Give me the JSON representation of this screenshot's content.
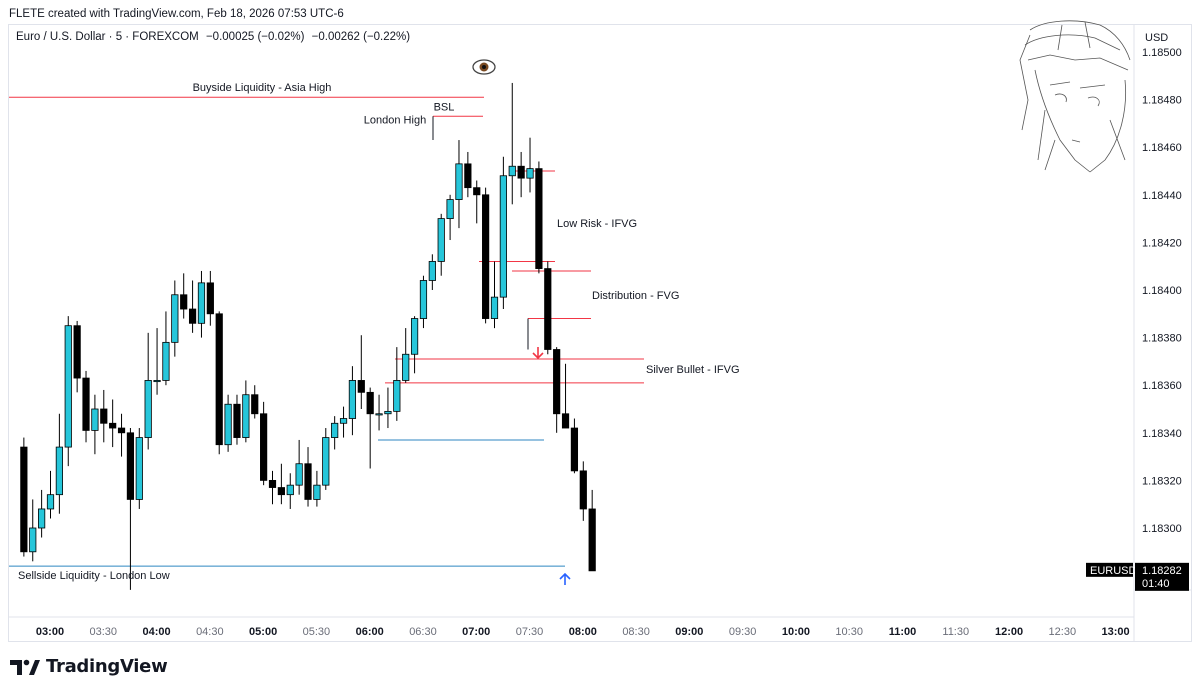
{
  "header": {
    "credit": "FLETE created with TradingView.com, Feb 18, 2026 07:53 UTC-6"
  },
  "legend": {
    "symbol": "Euro / U.S. Dollar · 5 · FOREXCOM",
    "change": "−0.00025 (−0.02%)",
    "change2": "−0.00262 (−0.22%)"
  },
  "price_axis": {
    "currency": "USD",
    "ticker": "EURUSD",
    "last_price": "1.18282",
    "countdown": "01:40"
  },
  "footer": {
    "brand": "TradingView"
  },
  "colors": {
    "up": "#26c6da",
    "down": "#000000",
    "liquidity_red": "#f23645",
    "liquidity_blue": "#2e86c1",
    "arrow_blue": "#2962ff",
    "arrow_red": "#f23645"
  },
  "icons": [
    "eye-icon",
    "tradingview-logo-icon",
    "anime-sketch-watermark"
  ],
  "chart_data": {
    "type": "candlestick",
    "timeframe": "5",
    "x_ticks": [
      "03:00",
      "03:30",
      "04:00",
      "04:30",
      "05:00",
      "05:30",
      "06:00",
      "06:30",
      "07:00",
      "07:30",
      "08:00",
      "08:30",
      "09:00",
      "09:30",
      "10:00",
      "10:30",
      "11:00",
      "11:30",
      "12:00",
      "12:30",
      "13:00"
    ],
    "x_ticks_bold": [
      "03:00",
      "04:00",
      "05:00",
      "06:00",
      "07:00",
      "08:00",
      "09:00",
      "10:00",
      "11:00",
      "12:00",
      "13:00"
    ],
    "y_ticks": [
      "1.18500",
      "1.18480",
      "1.18460",
      "1.18440",
      "1.18420",
      "1.18400",
      "1.18380",
      "1.18360",
      "1.18340",
      "1.18320",
      "1.18300"
    ],
    "ylim": [
      1.18264,
      1.18508
    ],
    "start_time": "02:45",
    "candles": [
      {
        "o": 1.18334,
        "h": 1.18338,
        "l": 1.18288,
        "c": 1.1829
      },
      {
        "o": 1.1829,
        "h": 1.18312,
        "l": 1.18286,
        "c": 1.183
      },
      {
        "o": 1.183,
        "h": 1.18316,
        "l": 1.18296,
        "c": 1.18308
      },
      {
        "o": 1.18308,
        "h": 1.18324,
        "l": 1.18304,
        "c": 1.18314
      },
      {
        "o": 1.18314,
        "h": 1.18348,
        "l": 1.18306,
        "c": 1.18334
      },
      {
        "o": 1.18334,
        "h": 1.18389,
        "l": 1.18326,
        "c": 1.18385
      },
      {
        "o": 1.18385,
        "h": 1.18387,
        "l": 1.18357,
        "c": 1.18363
      },
      {
        "o": 1.18363,
        "h": 1.18366,
        "l": 1.18336,
        "c": 1.18341
      },
      {
        "o": 1.18341,
        "h": 1.18356,
        "l": 1.18331,
        "c": 1.1835
      },
      {
        "o": 1.1835,
        "h": 1.18358,
        "l": 1.18336,
        "c": 1.18344
      },
      {
        "o": 1.18344,
        "h": 1.18354,
        "l": 1.18334,
        "c": 1.18342
      },
      {
        "o": 1.18342,
        "h": 1.18348,
        "l": 1.1833,
        "c": 1.1834
      },
      {
        "o": 1.1834,
        "h": 1.18342,
        "l": 1.18274,
        "c": 1.18312
      },
      {
        "o": 1.18312,
        "h": 1.18342,
        "l": 1.18308,
        "c": 1.18338
      },
      {
        "o": 1.18338,
        "h": 1.18382,
        "l": 1.18333,
        "c": 1.18362
      },
      {
        "o": 1.18362,
        "h": 1.18384,
        "l": 1.18356,
        "c": 1.18362
      },
      {
        "o": 1.18362,
        "h": 1.18391,
        "l": 1.1836,
        "c": 1.18378
      },
      {
        "o": 1.18378,
        "h": 1.18404,
        "l": 1.18372,
        "c": 1.18398
      },
      {
        "o": 1.18398,
        "h": 1.18407,
        "l": 1.18388,
        "c": 1.18392
      },
      {
        "o": 1.18392,
        "h": 1.18404,
        "l": 1.18382,
        "c": 1.18386
      },
      {
        "o": 1.18386,
        "h": 1.18408,
        "l": 1.1838,
        "c": 1.18403
      },
      {
        "o": 1.18403,
        "h": 1.18408,
        "l": 1.18385,
        "c": 1.1839
      },
      {
        "o": 1.1839,
        "h": 1.18391,
        "l": 1.18331,
        "c": 1.18335
      },
      {
        "o": 1.18335,
        "h": 1.18356,
        "l": 1.18332,
        "c": 1.18352
      },
      {
        "o": 1.18352,
        "h": 1.18356,
        "l": 1.18335,
        "c": 1.18338
      },
      {
        "o": 1.18338,
        "h": 1.18362,
        "l": 1.18336,
        "c": 1.18356
      },
      {
        "o": 1.18356,
        "h": 1.1836,
        "l": 1.18346,
        "c": 1.18348
      },
      {
        "o": 1.18348,
        "h": 1.18353,
        "l": 1.18318,
        "c": 1.1832
      },
      {
        "o": 1.1832,
        "h": 1.18324,
        "l": 1.1831,
        "c": 1.18317
      },
      {
        "o": 1.18317,
        "h": 1.18327,
        "l": 1.1831,
        "c": 1.18314
      },
      {
        "o": 1.18314,
        "h": 1.18323,
        "l": 1.18308,
        "c": 1.18318
      },
      {
        "o": 1.18318,
        "h": 1.18337,
        "l": 1.18314,
        "c": 1.18327
      },
      {
        "o": 1.18327,
        "h": 1.18334,
        "l": 1.18309,
        "c": 1.18312
      },
      {
        "o": 1.18312,
        "h": 1.18324,
        "l": 1.18309,
        "c": 1.18318
      },
      {
        "o": 1.18318,
        "h": 1.18342,
        "l": 1.18316,
        "c": 1.18338
      },
      {
        "o": 1.18338,
        "h": 1.18347,
        "l": 1.18333,
        "c": 1.18344
      },
      {
        "o": 1.18344,
        "h": 1.18351,
        "l": 1.18338,
        "c": 1.18346
      },
      {
        "o": 1.18346,
        "h": 1.18368,
        "l": 1.18339,
        "c": 1.18362
      },
      {
        "o": 1.18362,
        "h": 1.18381,
        "l": 1.1835,
        "c": 1.18357
      },
      {
        "o": 1.18357,
        "h": 1.18359,
        "l": 1.18325,
        "c": 1.18348
      },
      {
        "o": 1.18348,
        "h": 1.18356,
        "l": 1.18341,
        "c": 1.18348
      },
      {
        "o": 1.18348,
        "h": 1.18359,
        "l": 1.18342,
        "c": 1.18349
      },
      {
        "o": 1.18349,
        "h": 1.18376,
        "l": 1.18345,
        "c": 1.18362
      },
      {
        "o": 1.18362,
        "h": 1.18384,
        "l": 1.18361,
        "c": 1.18373
      },
      {
        "o": 1.18373,
        "h": 1.18389,
        "l": 1.18365,
        "c": 1.18388
      },
      {
        "o": 1.18388,
        "h": 1.18406,
        "l": 1.18384,
        "c": 1.18404
      },
      {
        "o": 1.18404,
        "h": 1.18415,
        "l": 1.184,
        "c": 1.18412
      },
      {
        "o": 1.18412,
        "h": 1.18432,
        "l": 1.18406,
        "c": 1.1843
      },
      {
        "o": 1.1843,
        "h": 1.1844,
        "l": 1.18421,
        "c": 1.18438
      },
      {
        "o": 1.18438,
        "h": 1.18463,
        "l": 1.18426,
        "c": 1.18453
      },
      {
        "o": 1.18453,
        "h": 1.18458,
        "l": 1.18439,
        "c": 1.18443
      },
      {
        "o": 1.18443,
        "h": 1.18446,
        "l": 1.18428,
        "c": 1.1844
      },
      {
        "o": 1.1844,
        "h": 1.18443,
        "l": 1.18386,
        "c": 1.18388
      },
      {
        "o": 1.18388,
        "h": 1.18412,
        "l": 1.18384,
        "c": 1.18397
      },
      {
        "o": 1.18397,
        "h": 1.18456,
        "l": 1.18392,
        "c": 1.18448
      },
      {
        "o": 1.18448,
        "h": 1.18487,
        "l": 1.18436,
        "c": 1.18452
      },
      {
        "o": 1.18452,
        "h": 1.18458,
        "l": 1.18439,
        "c": 1.18447
      },
      {
        "o": 1.18447,
        "h": 1.18464,
        "l": 1.18441,
        "c": 1.18451
      },
      {
        "o": 1.18451,
        "h": 1.18454,
        "l": 1.18407,
        "c": 1.18409
      },
      {
        "o": 1.18409,
        "h": 1.18412,
        "l": 1.18373,
        "c": 1.18375
      },
      {
        "o": 1.18375,
        "h": 1.18376,
        "l": 1.1834,
        "c": 1.18348
      },
      {
        "o": 1.18348,
        "h": 1.18369,
        "l": 1.18342,
        "c": 1.18342
      },
      {
        "o": 1.18342,
        "h": 1.18346,
        "l": 1.18323,
        "c": 1.18324
      },
      {
        "o": 1.18324,
        "h": 1.18328,
        "l": 1.18303,
        "c": 1.18308
      },
      {
        "o": 1.18308,
        "h": 1.18316,
        "l": 1.18282,
        "c": 1.18282
      }
    ],
    "levels": [
      {
        "label": "Buyside Liquidity - Asia High",
        "price": 1.18481,
        "color": "red"
      },
      {
        "label": "BSL",
        "price": 1.18473,
        "color": "red"
      },
      {
        "label": "London High",
        "price": 1.18473
      },
      {
        "label": "Low Risk - IFVG",
        "price": 1.1845,
        "color": "red"
      },
      {
        "label": "Distribution - FVG",
        "price": 1.18388,
        "color": "red"
      },
      {
        "label": "Silver Bullet - IFVG",
        "price": 1.18371,
        "color": "red"
      },
      {
        "label": "Sellside Liquidity - London Low",
        "price": 1.18284,
        "color": "blue"
      }
    ],
    "grid": false
  }
}
